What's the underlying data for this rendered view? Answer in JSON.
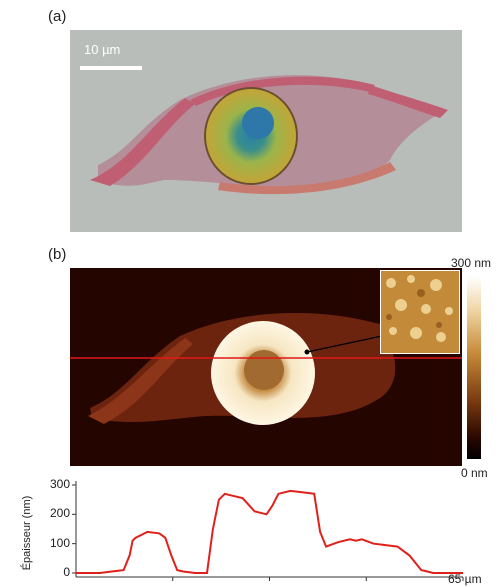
{
  "panels": {
    "a_label": "(a)",
    "b_label": "(b)"
  },
  "optical": {
    "scale_bar_label": "10 µm"
  },
  "afm": {
    "colorbar_max": "300 nm",
    "colorbar_min": "0 nm"
  },
  "chart_data": {
    "type": "line",
    "ylabel": "Épaisseur (nm)",
    "yticks": [
      "300",
      "200",
      "100",
      "0"
    ],
    "ylim": [
      0,
      300
    ],
    "xlim": [
      0,
      65
    ],
    "xtick_label": "65 µm",
    "series": [
      {
        "color": "#e0201b",
        "x": [
          0,
          2,
          4,
          6,
          8,
          9,
          9.5,
          10,
          12,
          14,
          15,
          16,
          17,
          18,
          20,
          22,
          23,
          24,
          25,
          26,
          28,
          30,
          32,
          33,
          34,
          36,
          38,
          40,
          41,
          42,
          44,
          46,
          47,
          48,
          50,
          52,
          54,
          56,
          58,
          59,
          60,
          62,
          65
        ],
        "values": [
          0,
          0,
          0,
          5,
          10,
          60,
          110,
          120,
          140,
          135,
          120,
          60,
          10,
          5,
          0,
          0,
          150,
          250,
          270,
          265,
          255,
          210,
          200,
          230,
          270,
          280,
          275,
          270,
          140,
          90,
          105,
          115,
          110,
          115,
          100,
          95,
          90,
          60,
          10,
          5,
          0,
          0,
          0
        ]
      }
    ]
  },
  "colors": {
    "profile_line": "#e0201b",
    "cut_line": "#e01818"
  }
}
